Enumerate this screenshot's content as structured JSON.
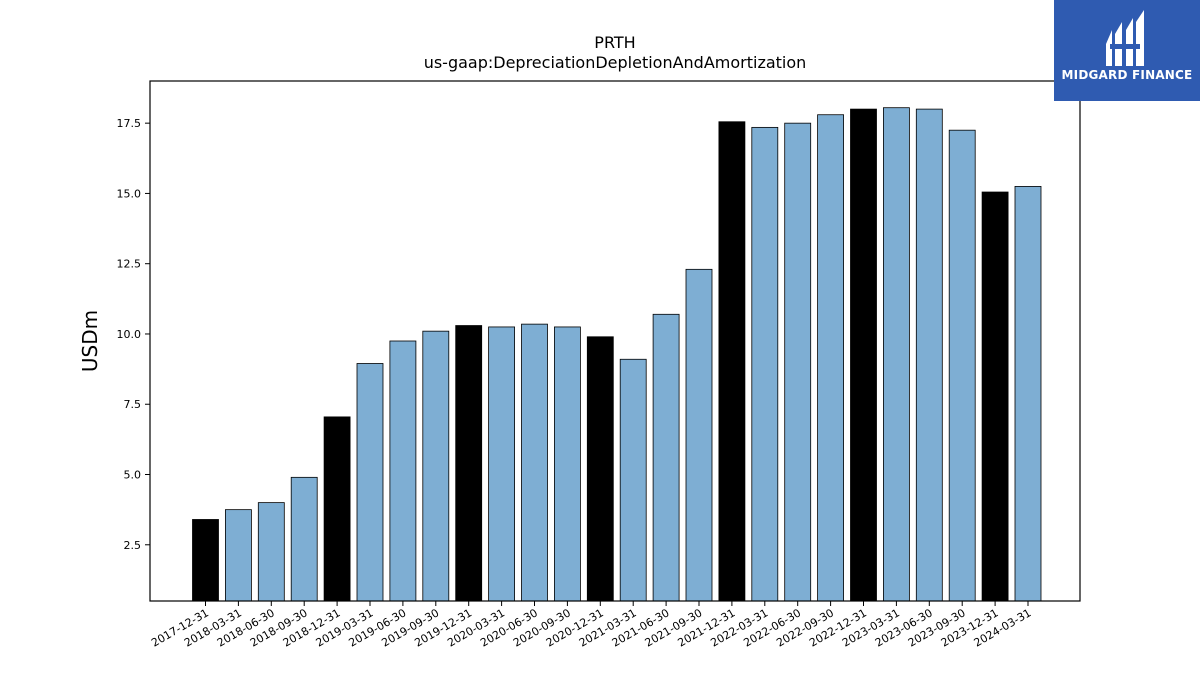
{
  "brand": {
    "logo_text": "MIDGARD FINANCE",
    "logo_bg": "#2f5bb1"
  },
  "colors": {
    "highlight_bar": "#000000",
    "regular_bar": "#7eaed3",
    "bar_edge": "#000000"
  },
  "chart_data": {
    "type": "bar",
    "title": "PRTH",
    "subtitle": "us-gaap:DepreciationDepletionAndAmortization",
    "xlabel": "",
    "ylabel": "USDm",
    "ylim": [
      0.5,
      19.0
    ],
    "yticks": [
      2.5,
      5.0,
      7.5,
      10.0,
      12.5,
      15.0,
      17.5
    ],
    "ytick_labels": [
      "2.5",
      "5.0",
      "7.5",
      "10.0",
      "12.5",
      "15.0",
      "17.5"
    ],
    "grid": false,
    "categories": [
      "2017-12-31",
      "2018-03-31",
      "2018-06-30",
      "2018-09-30",
      "2018-12-31",
      "2019-03-31",
      "2019-06-30",
      "2019-09-30",
      "2019-12-31",
      "2020-03-31",
      "2020-06-30",
      "2020-09-30",
      "2020-12-31",
      "2021-03-31",
      "2021-06-30",
      "2021-09-30",
      "2021-12-31",
      "2022-03-31",
      "2022-06-30",
      "2022-09-30",
      "2022-12-31",
      "2023-03-31",
      "2023-06-30",
      "2023-09-30",
      "2023-12-31",
      "2024-03-31"
    ],
    "values": [
      3.4,
      3.75,
      4.0,
      4.9,
      7.05,
      8.95,
      9.75,
      10.1,
      10.3,
      10.25,
      10.35,
      10.25,
      9.9,
      9.1,
      10.7,
      12.3,
      17.55,
      17.35,
      17.5,
      17.8,
      18.0,
      18.05,
      18.0,
      17.25,
      15.05,
      15.25
    ],
    "highlight": [
      true,
      false,
      false,
      false,
      true,
      false,
      false,
      false,
      true,
      false,
      false,
      false,
      true,
      false,
      false,
      false,
      true,
      false,
      false,
      false,
      true,
      false,
      false,
      false,
      true,
      false
    ]
  }
}
